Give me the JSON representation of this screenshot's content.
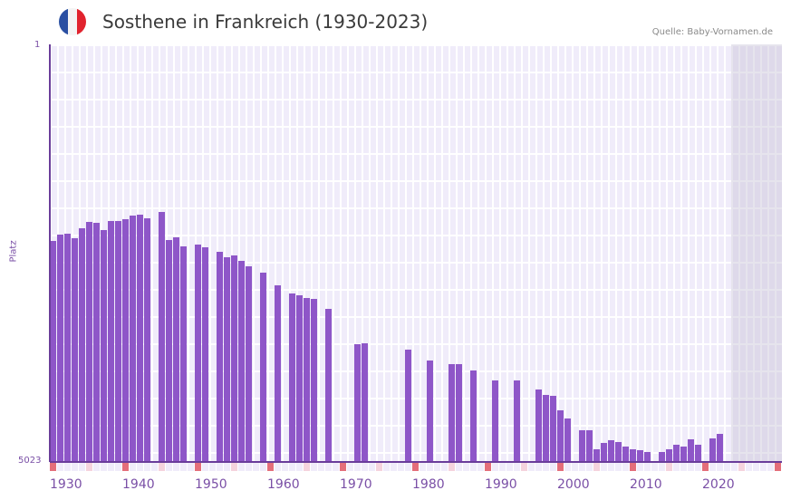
{
  "header": {
    "title": "Sosthene in Frankreich (1930-2023)",
    "source": "Quelle: Baby-Vornamen.de",
    "flag_colors": [
      "#2a4fa2",
      "#f4f4f4",
      "#e1232e"
    ],
    "flag_icon": "france-flag-icon"
  },
  "colors": {
    "bar": "#8e56c8",
    "axis": "#6a3d9a",
    "decade_marker": "#e46e7a",
    "half_decade_marker": "#f5d3dd",
    "year_marker": "#f0ecfa",
    "shaded_future": "#e2dfea"
  },
  "chart_data": {
    "type": "bar",
    "title": "Sosthene in Frankreich (1930-2023)",
    "xlabel": "",
    "ylabel": "Platz",
    "y_inverted": true,
    "ylim": [
      5023,
      1
    ],
    "y_ticks": [
      "1",
      "5023"
    ],
    "x_range": [
      1930,
      2030
    ],
    "x_ticks": [
      "1930",
      "1940",
      "1950",
      "1960",
      "1970",
      "1980",
      "1990",
      "2000",
      "2010",
      "2020"
    ],
    "shaded_from_year": 2024,
    "grid": true,
    "legend": null,
    "points": [
      {
        "year": 1930,
        "rank": 2370
      },
      {
        "year": 1931,
        "rank": 2293
      },
      {
        "year": 1932,
        "rank": 2282
      },
      {
        "year": 1933,
        "rank": 2337
      },
      {
        "year": 1934,
        "rank": 2217
      },
      {
        "year": 1935,
        "rank": 2140
      },
      {
        "year": 1936,
        "rank": 2151
      },
      {
        "year": 1937,
        "rank": 2239
      },
      {
        "year": 1938,
        "rank": 2129
      },
      {
        "year": 1939,
        "rank": 2129
      },
      {
        "year": 1940,
        "rank": 2107
      },
      {
        "year": 1941,
        "rank": 2063
      },
      {
        "year": 1942,
        "rank": 2052
      },
      {
        "year": 1943,
        "rank": 2096
      },
      {
        "year": 1945,
        "rank": 2020
      },
      {
        "year": 1946,
        "rank": 2359
      },
      {
        "year": 1947,
        "rank": 2326
      },
      {
        "year": 1948,
        "rank": 2435
      },
      {
        "year": 1950,
        "rank": 2413
      },
      {
        "year": 1951,
        "rank": 2446
      },
      {
        "year": 1953,
        "rank": 2501
      },
      {
        "year": 1954,
        "rank": 2566
      },
      {
        "year": 1955,
        "rank": 2544
      },
      {
        "year": 1956,
        "rank": 2610
      },
      {
        "year": 1957,
        "rank": 2675
      },
      {
        "year": 1959,
        "rank": 2752
      },
      {
        "year": 1961,
        "rank": 2905
      },
      {
        "year": 1963,
        "rank": 3003
      },
      {
        "year": 1964,
        "rank": 3025
      },
      {
        "year": 1965,
        "rank": 3058
      },
      {
        "year": 1966,
        "rank": 3069
      },
      {
        "year": 1968,
        "rank": 3189
      },
      {
        "year": 1972,
        "rank": 3615
      },
      {
        "year": 1973,
        "rank": 3604
      },
      {
        "year": 1979,
        "rank": 3680
      },
      {
        "year": 1982,
        "rank": 3811
      },
      {
        "year": 1985,
        "rank": 3855
      },
      {
        "year": 1986,
        "rank": 3855
      },
      {
        "year": 1988,
        "rank": 3932
      },
      {
        "year": 1991,
        "rank": 4052
      },
      {
        "year": 1994,
        "rank": 4052
      },
      {
        "year": 1997,
        "rank": 4161
      },
      {
        "year": 1998,
        "rank": 4227
      },
      {
        "year": 1999,
        "rank": 4238
      },
      {
        "year": 2000,
        "rank": 4413
      },
      {
        "year": 2001,
        "rank": 4511
      },
      {
        "year": 2003,
        "rank": 4653
      },
      {
        "year": 2004,
        "rank": 4653
      },
      {
        "year": 2005,
        "rank": 4882
      },
      {
        "year": 2006,
        "rank": 4806
      },
      {
        "year": 2007,
        "rank": 4773
      },
      {
        "year": 2008,
        "rank": 4795
      },
      {
        "year": 2009,
        "rank": 4849
      },
      {
        "year": 2010,
        "rank": 4882
      },
      {
        "year": 2011,
        "rank": 4893
      },
      {
        "year": 2012,
        "rank": 4915
      },
      {
        "year": 2014,
        "rank": 4915
      },
      {
        "year": 2015,
        "rank": 4882
      },
      {
        "year": 2016,
        "rank": 4827
      },
      {
        "year": 2017,
        "rank": 4849
      },
      {
        "year": 2018,
        "rank": 4762
      },
      {
        "year": 2019,
        "rank": 4827
      },
      {
        "year": 2021,
        "rank": 4751
      },
      {
        "year": 2022,
        "rank": 4697
      }
    ]
  }
}
